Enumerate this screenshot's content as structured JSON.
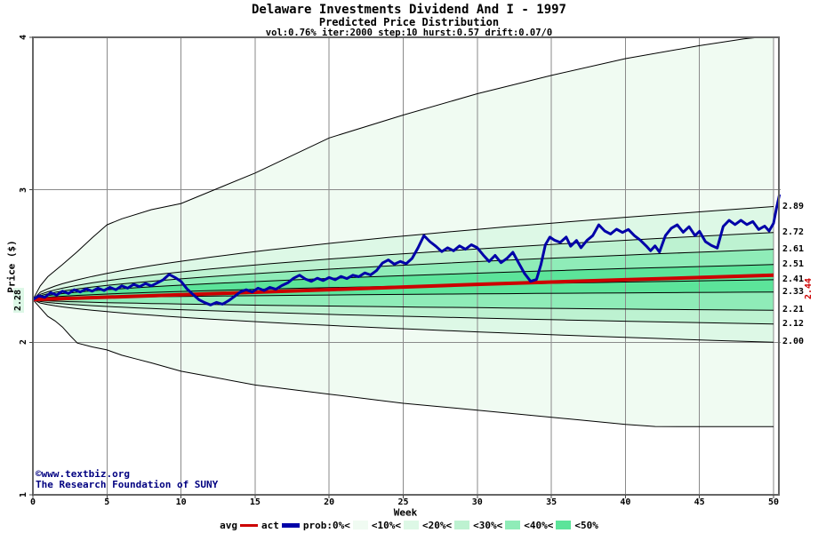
{
  "header": {
    "title": "Delaware Investments Dividend And I - 1997",
    "subtitle": "Predicted Price Distribution",
    "params": "vol:0.76% iter:2000 step:10 hurst:0.57 drift:0.07/0"
  },
  "footer": {
    "copyright_line1": "©www.textbiz.org",
    "copyright_line2": "The Research Foundation of SUNY"
  },
  "chart_data": {
    "type": "area",
    "title": "Delaware Investments Dividend And I - 1997",
    "subtitle": "Predicted Price Distribution",
    "xlabel": "Week",
    "ylabel": "Price ($)",
    "xlim": [
      0,
      50.4
    ],
    "ylim": [
      1,
      4
    ],
    "x_ticks": [
      0,
      5,
      10,
      15,
      20,
      25,
      30,
      35,
      40,
      45,
      50
    ],
    "x_tick_labels": [
      "0",
      "5",
      "10",
      "15",
      "20",
      "25",
      "30",
      "35",
      "40",
      "45",
      "50"
    ],
    "y_ticks": [
      1,
      2,
      3,
      4
    ],
    "y_tick_labels": [
      "1",
      "2",
      "3",
      "4"
    ],
    "grid": "on",
    "start_price": 2.28,
    "start_price_label": "2.28",
    "avg_series": {
      "name": "avg",
      "color": "#cc0000",
      "end_value": 2.44,
      "end_label": "2.44",
      "points": [
        [
          0,
          2.28
        ],
        [
          10,
          2.312
        ],
        [
          20,
          2.345
        ],
        [
          30,
          2.38
        ],
        [
          40,
          2.41
        ],
        [
          50,
          2.44
        ]
      ]
    },
    "act_series": {
      "name": "act",
      "color": "#0000a8",
      "points": [
        [
          0,
          2.28
        ],
        [
          0.4,
          2.305
        ],
        [
          0.8,
          2.295
        ],
        [
          1.2,
          2.325
        ],
        [
          1.6,
          2.31
        ],
        [
          2,
          2.335
        ],
        [
          2.4,
          2.32
        ],
        [
          2.8,
          2.345
        ],
        [
          3.2,
          2.33
        ],
        [
          3.6,
          2.35
        ],
        [
          4,
          2.335
        ],
        [
          4.4,
          2.355
        ],
        [
          4.8,
          2.34
        ],
        [
          5.2,
          2.36
        ],
        [
          5.6,
          2.345
        ],
        [
          6,
          2.37
        ],
        [
          6.4,
          2.355
        ],
        [
          6.8,
          2.38
        ],
        [
          7.2,
          2.365
        ],
        [
          7.6,
          2.385
        ],
        [
          8,
          2.37
        ],
        [
          8.4,
          2.39
        ],
        [
          8.8,
          2.41
        ],
        [
          9.2,
          2.445
        ],
        [
          9.6,
          2.425
        ],
        [
          10,
          2.4
        ],
        [
          10.4,
          2.35
        ],
        [
          10.8,
          2.315
        ],
        [
          11.2,
          2.28
        ],
        [
          11.6,
          2.26
        ],
        [
          12,
          2.245
        ],
        [
          12.4,
          2.262
        ],
        [
          12.8,
          2.25
        ],
        [
          13.2,
          2.272
        ],
        [
          13.6,
          2.3
        ],
        [
          14,
          2.33
        ],
        [
          14.4,
          2.345
        ],
        [
          14.8,
          2.33
        ],
        [
          15.2,
          2.355
        ],
        [
          15.6,
          2.34
        ],
        [
          16,
          2.36
        ],
        [
          16.4,
          2.348
        ],
        [
          16.8,
          2.372
        ],
        [
          17.2,
          2.39
        ],
        [
          17.6,
          2.42
        ],
        [
          18,
          2.44
        ],
        [
          18.4,
          2.415
        ],
        [
          18.8,
          2.4
        ],
        [
          19.2,
          2.42
        ],
        [
          19.6,
          2.405
        ],
        [
          20,
          2.425
        ],
        [
          20.4,
          2.41
        ],
        [
          20.8,
          2.432
        ],
        [
          21.2,
          2.418
        ],
        [
          21.6,
          2.44
        ],
        [
          22,
          2.43
        ],
        [
          22.4,
          2.455
        ],
        [
          22.8,
          2.442
        ],
        [
          23.2,
          2.47
        ],
        [
          23.6,
          2.52
        ],
        [
          24,
          2.54
        ],
        [
          24.4,
          2.512
        ],
        [
          24.8,
          2.53
        ],
        [
          25.2,
          2.515
        ],
        [
          25.6,
          2.55
        ],
        [
          26,
          2.62
        ],
        [
          26.4,
          2.7
        ],
        [
          26.8,
          2.66
        ],
        [
          27.2,
          2.63
        ],
        [
          27.6,
          2.595
        ],
        [
          28,
          2.62
        ],
        [
          28.4,
          2.6
        ],
        [
          28.8,
          2.632
        ],
        [
          29.2,
          2.61
        ],
        [
          29.6,
          2.64
        ],
        [
          30,
          2.62
        ],
        [
          30.4,
          2.572
        ],
        [
          30.8,
          2.53
        ],
        [
          31.2,
          2.57
        ],
        [
          31.6,
          2.522
        ],
        [
          32,
          2.55
        ],
        [
          32.4,
          2.59
        ],
        [
          32.8,
          2.52
        ],
        [
          33.2,
          2.45
        ],
        [
          33.6,
          2.4
        ],
        [
          34,
          2.412
        ],
        [
          34.3,
          2.51
        ],
        [
          34.6,
          2.64
        ],
        [
          34.9,
          2.69
        ],
        [
          35.2,
          2.67
        ],
        [
          35.6,
          2.655
        ],
        [
          36,
          2.69
        ],
        [
          36.3,
          2.63
        ],
        [
          36.7,
          2.668
        ],
        [
          37,
          2.62
        ],
        [
          37.4,
          2.668
        ],
        [
          37.8,
          2.7
        ],
        [
          38.2,
          2.77
        ],
        [
          38.6,
          2.73
        ],
        [
          39,
          2.71
        ],
        [
          39.4,
          2.742
        ],
        [
          39.8,
          2.72
        ],
        [
          40.2,
          2.74
        ],
        [
          40.6,
          2.7
        ],
        [
          41,
          2.67
        ],
        [
          41.4,
          2.632
        ],
        [
          41.7,
          2.6
        ],
        [
          42,
          2.632
        ],
        [
          42.3,
          2.592
        ],
        [
          42.7,
          2.7
        ],
        [
          43.1,
          2.748
        ],
        [
          43.5,
          2.77
        ],
        [
          43.9,
          2.722
        ],
        [
          44.3,
          2.758
        ],
        [
          44.7,
          2.7
        ],
        [
          45,
          2.728
        ],
        [
          45.4,
          2.66
        ],
        [
          45.8,
          2.635
        ],
        [
          46.2,
          2.618
        ],
        [
          46.6,
          2.76
        ],
        [
          47,
          2.8
        ],
        [
          47.4,
          2.772
        ],
        [
          47.8,
          2.8
        ],
        [
          48.2,
          2.772
        ],
        [
          48.6,
          2.792
        ],
        [
          49,
          2.74
        ],
        [
          49.4,
          2.762
        ],
        [
          49.7,
          2.73
        ],
        [
          50,
          2.78
        ],
        [
          50.2,
          2.88
        ],
        [
          50.4,
          2.97
        ]
      ]
    },
    "fan": {
      "boundary_end_values": [
        2.89,
        2.72,
        2.61,
        2.51,
        2.41,
        2.33,
        2.21,
        2.12,
        2.0
      ],
      "boundary_end_labels": [
        "2.89",
        "2.72",
        "2.61",
        "2.51",
        "2.41",
        "2.33",
        "2.21",
        "2.12",
        "2.00"
      ],
      "curve_exponent": 0.55,
      "upper_envelope": [
        [
          0,
          2.28
        ],
        [
          0.5,
          2.37
        ],
        [
          1,
          2.43
        ],
        [
          2,
          2.51
        ],
        [
          3,
          2.595
        ],
        [
          4,
          2.685
        ],
        [
          5,
          2.77
        ],
        [
          6,
          2.81
        ],
        [
          8,
          2.87
        ],
        [
          10,
          2.91
        ],
        [
          13,
          3.03
        ],
        [
          15,
          3.11
        ],
        [
          20,
          3.34
        ],
        [
          25,
          3.49
        ],
        [
          30,
          3.63
        ],
        [
          35,
          3.75
        ],
        [
          40,
          3.86
        ],
        [
          45,
          3.945
        ],
        [
          48,
          3.99
        ],
        [
          50,
          4.01
        ]
      ],
      "lower_envelope": [
        [
          0,
          2.28
        ],
        [
          0.5,
          2.225
        ],
        [
          1,
          2.17
        ],
        [
          1.5,
          2.14
        ],
        [
          2,
          2.1
        ],
        [
          2.5,
          2.045
        ],
        [
          3,
          1.995
        ],
        [
          4,
          1.97
        ],
        [
          5,
          1.95
        ],
        [
          6,
          1.915
        ],
        [
          7,
          1.89
        ],
        [
          8,
          1.865
        ],
        [
          10,
          1.81
        ],
        [
          12,
          1.775
        ],
        [
          15,
          1.72
        ],
        [
          20,
          1.66
        ],
        [
          25,
          1.6
        ],
        [
          30,
          1.555
        ],
        [
          34,
          1.518
        ],
        [
          37,
          1.49
        ],
        [
          40,
          1.462
        ],
        [
          42,
          1.448
        ],
        [
          45,
          1.447
        ],
        [
          50,
          1.447
        ]
      ],
      "band_colors_outer_to_center": [
        "#f0fbf2",
        "#ddf8e6",
        "#bdf2d1",
        "#8fecb8",
        "#5ce49a"
      ]
    },
    "legend": {
      "items": [
        {
          "label": "avg",
          "swatch": "line",
          "color": "#cc0000",
          "thickness": 3
        },
        {
          "label": "act",
          "swatch": "line",
          "color": "#0000a8",
          "thickness": 5
        },
        {
          "label": "prob:0%<",
          "swatch": "box",
          "color": "#f0fbf2"
        },
        {
          "label": "<10%<",
          "swatch": "box",
          "color": "#ddf8e6"
        },
        {
          "label": "<20%<",
          "swatch": "box",
          "color": "#bdf2d1"
        },
        {
          "label": "<30%<",
          "swatch": "box",
          "color": "#8fecb8"
        },
        {
          "label": "<40%<",
          "swatch": "box",
          "color": "#5ce49a"
        },
        {
          "label": "<50%",
          "swatch": "none",
          "color": ""
        }
      ]
    }
  }
}
